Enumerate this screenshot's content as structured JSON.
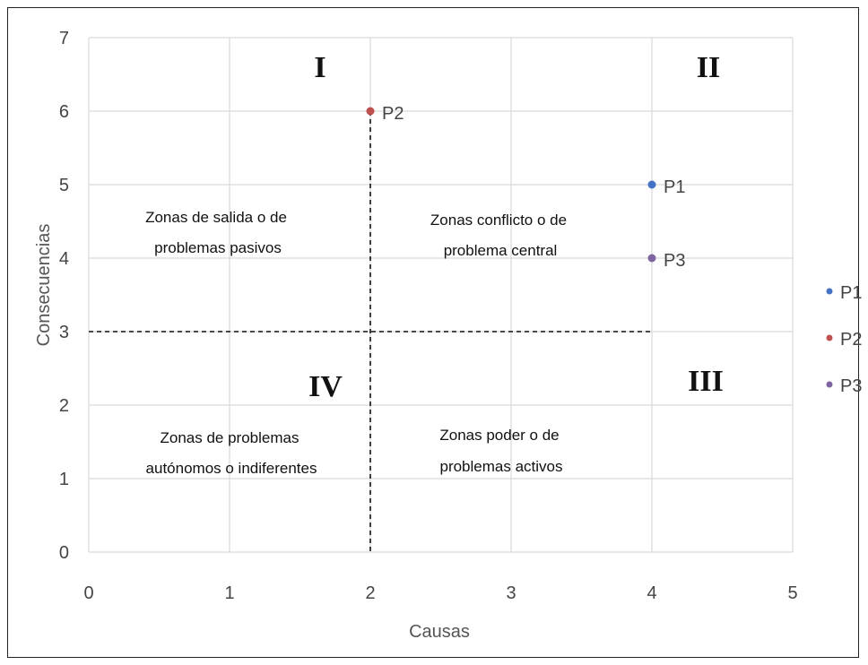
{
  "chart_data": {
    "type": "scatter",
    "xlabel": "Causas",
    "ylabel": "Consecuencias",
    "xlim": [
      0,
      5
    ],
    "ylim": [
      0,
      7
    ],
    "xticks": [
      "0",
      "1",
      "2",
      "3",
      "4",
      "5"
    ],
    "yticks": [
      "0",
      "1",
      "2",
      "3",
      "4",
      "5",
      "6",
      "7"
    ],
    "grid": true,
    "legend_position": "right",
    "series": [
      {
        "name": "P1",
        "color": "#4472C4",
        "x": 4,
        "y": 5
      },
      {
        "name": "P2",
        "color": "#C0504D",
        "x": 2,
        "y": 6
      },
      {
        "name": "P3",
        "color": "#8064A2",
        "x": 4,
        "y": 4
      }
    ],
    "dividers": {
      "x": 2,
      "y": 3
    },
    "quadrants": [
      {
        "numeral": "I",
        "text": [
          "Zonas de salida o de",
          "problemas pasivos"
        ]
      },
      {
        "numeral": "II",
        "text": [
          "Zonas conflicto o de",
          "problema central"
        ]
      },
      {
        "numeral": "III",
        "text": [
          "Zonas poder o de",
          "problemas activos"
        ]
      },
      {
        "numeral": "IV",
        "text": [
          "Zonas de problemas",
          "autónomos o indiferentes"
        ]
      }
    ]
  }
}
